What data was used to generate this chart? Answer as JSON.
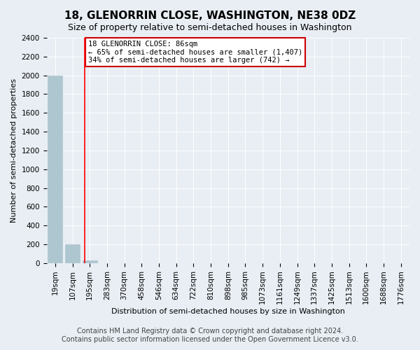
{
  "title": "18, GLENORRIN CLOSE, WASHINGTON, NE38 0DZ",
  "subtitle": "Size of property relative to semi-detached houses in Washington",
  "xlabel": "Distribution of semi-detached houses by size in Washington",
  "ylabel": "Number of semi-detached properties",
  "footer_line1": "Contains HM Land Registry data © Crown copyright and database right 2024.",
  "footer_line2": "Contains public sector information licensed under the Open Government Licence v3.0.",
  "bins": [
    "19sqm",
    "107sqm",
    "195sqm",
    "283sqm",
    "370sqm",
    "458sqm",
    "546sqm",
    "634sqm",
    "722sqm",
    "810sqm",
    "898sqm",
    "985sqm",
    "1073sqm",
    "1161sqm",
    "1249sqm",
    "1337sqm",
    "1425sqm",
    "1513sqm",
    "1600sqm",
    "1688sqm",
    "1776sqm"
  ],
  "values": [
    2000,
    200,
    30,
    2,
    0,
    0,
    0,
    0,
    0,
    0,
    0,
    0,
    0,
    0,
    0,
    0,
    0,
    0,
    0,
    0,
    0
  ],
  "bar_color": "#aec6cf",
  "bar_edge_color": "#aec6cf",
  "red_line_x": 1.7,
  "annotation_text": "18 GLENORRIN CLOSE: 86sqm\n← 65% of semi-detached houses are smaller (1,407)\n34% of semi-detached houses are larger (742) →",
  "annotation_box_color": "#ffffff",
  "annotation_box_edge_color": "#cc0000",
  "ylim": [
    0,
    2400
  ],
  "yticks": [
    0,
    200,
    400,
    600,
    800,
    1000,
    1200,
    1400,
    1600,
    1800,
    2000,
    2200,
    2400
  ],
  "title_fontsize": 11,
  "subtitle_fontsize": 9,
  "axis_label_fontsize": 8,
  "tick_fontsize": 7.5,
  "footer_fontsize": 7,
  "background_color": "#e8eef4",
  "plot_bg_color": "#e8eef4"
}
